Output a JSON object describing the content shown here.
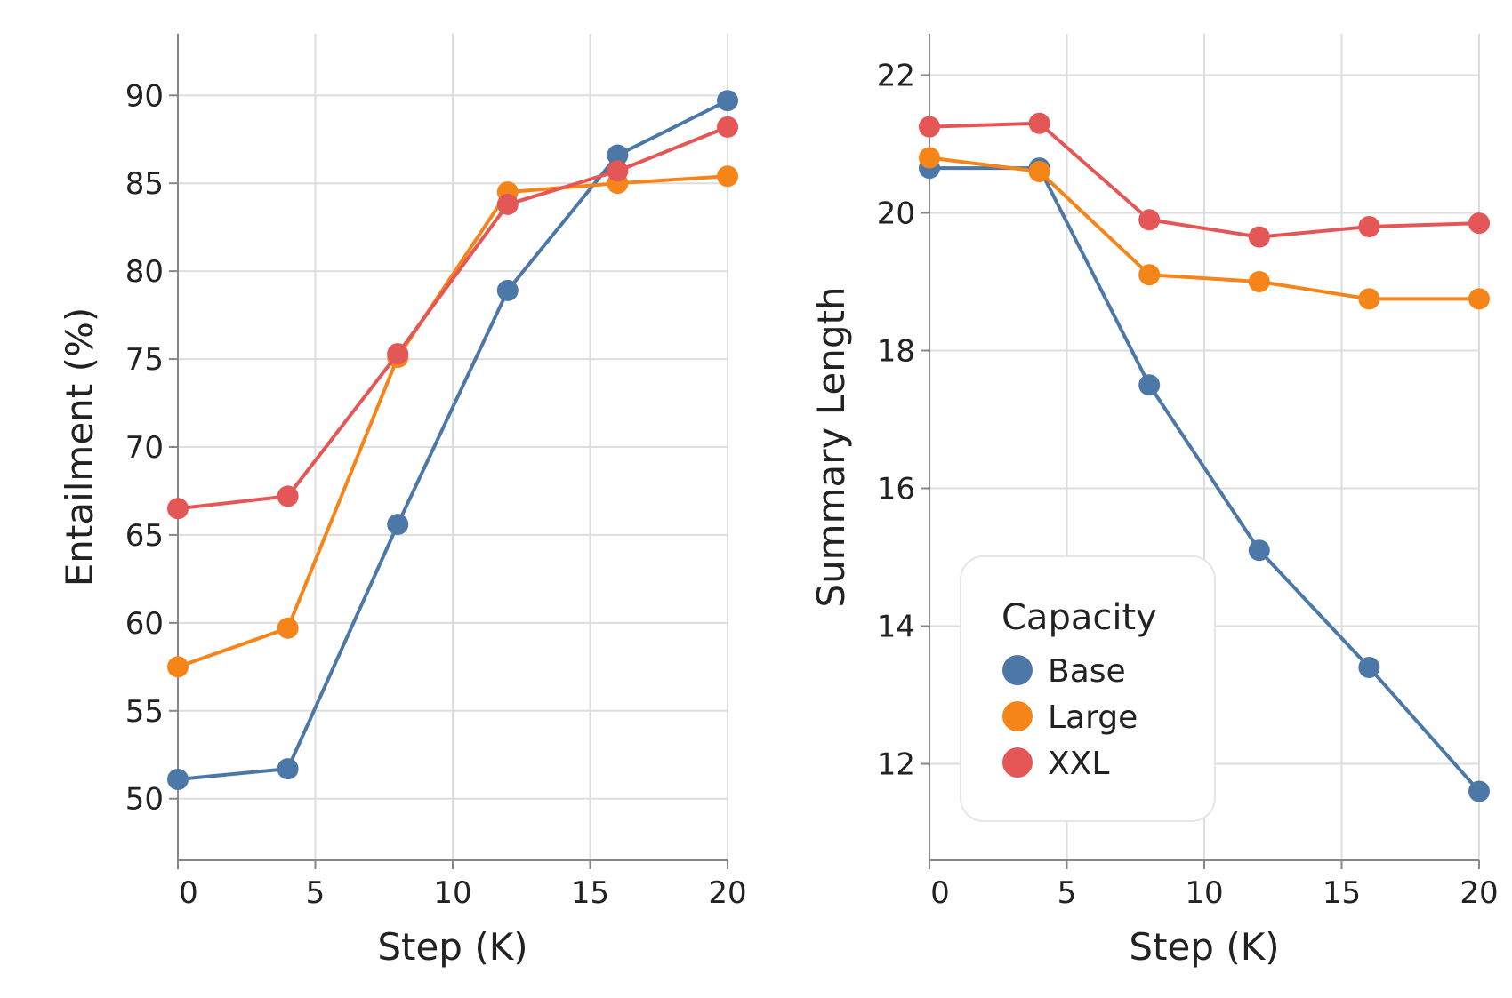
{
  "chart_data": [
    {
      "type": "line",
      "title": "",
      "xlabel": "Step (K)",
      "ylabel": "Entailment (%)",
      "xlim": [
        0,
        20
      ],
      "ylim": [
        46.5,
        93.5
      ],
      "x_ticks": [
        0,
        5,
        10,
        15,
        20
      ],
      "y_ticks": [
        50,
        55,
        60,
        65,
        70,
        75,
        80,
        85,
        90
      ],
      "grid": true,
      "x": [
        0,
        4,
        8,
        12,
        16,
        20
      ],
      "series": [
        {
          "name": "Base",
          "color": "#4c78a8",
          "values": [
            51.1,
            51.7,
            65.6,
            78.9,
            86.6,
            89.7
          ]
        },
        {
          "name": "Large",
          "color": "#f58518",
          "values": [
            57.5,
            59.7,
            75.1,
            84.5,
            85.0,
            85.4
          ]
        },
        {
          "name": "XXL",
          "color": "#e45756",
          "values": [
            66.5,
            67.2,
            75.3,
            83.8,
            85.7,
            88.2
          ]
        }
      ]
    },
    {
      "type": "line",
      "title": "",
      "xlabel": "Step (K)",
      "ylabel": "Summary Length",
      "xlim": [
        0,
        20
      ],
      "ylim": [
        10.6,
        22.6
      ],
      "x_ticks": [
        0,
        5,
        10,
        15,
        20
      ],
      "y_ticks": [
        12,
        14,
        16,
        18,
        20,
        22
      ],
      "grid": true,
      "x": [
        0,
        4,
        8,
        12,
        16,
        20
      ],
      "series": [
        {
          "name": "Base",
          "color": "#4c78a8",
          "values": [
            20.65,
            20.65,
            17.5,
            15.1,
            13.4,
            11.6
          ]
        },
        {
          "name": "Large",
          "color": "#f58518",
          "values": [
            20.8,
            20.6,
            19.1,
            19.0,
            18.75,
            18.75
          ]
        },
        {
          "name": "XXL",
          "color": "#e45756",
          "values": [
            21.25,
            21.3,
            19.9,
            19.65,
            19.8,
            19.85
          ]
        }
      ],
      "legend": {
        "title": "Capacity",
        "placement": "bottom-left",
        "entries": [
          "Base",
          "Large",
          "XXL"
        ]
      }
    }
  ]
}
